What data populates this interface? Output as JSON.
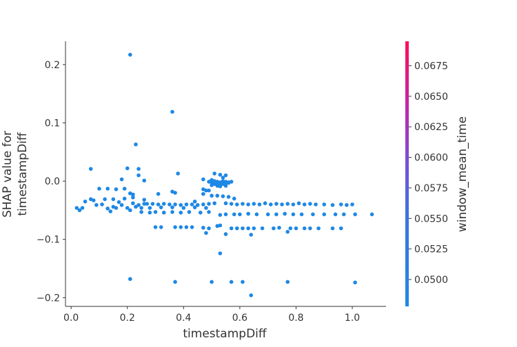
{
  "chart_data": {
    "type": "scatter",
    "xlabel": "timestampDiff",
    "ylabel_lines": [
      "SHAP value for",
      "timestampDiff"
    ],
    "xlim": [
      -0.02,
      1.12
    ],
    "ylim": [
      -0.215,
      0.24
    ],
    "xticks": [
      0.0,
      0.2,
      0.4,
      0.6,
      0.8,
      1.0
    ],
    "xtick_labels": [
      "0.0",
      "0.2",
      "0.4",
      "0.6",
      "0.8",
      "1.0"
    ],
    "yticks": [
      -0.2,
      -0.1,
      0.0,
      0.1,
      0.2
    ],
    "ytick_labels": [
      "−0.2",
      "−0.1",
      "0.0",
      "0.1",
      "0.2"
    ],
    "point_color": "#1e88e5",
    "grid": false,
    "colorbar": {
      "label": "window_mean_time",
      "range": [
        0.0478,
        0.0695
      ],
      "ticks": [
        0.05,
        0.0525,
        0.055,
        0.0575,
        0.06,
        0.0625,
        0.065,
        0.0675
      ],
      "tick_labels": [
        "0.0500",
        "0.0525",
        "0.0550",
        "0.0575",
        "0.0600",
        "0.0625",
        "0.0650",
        "0.0675"
      ],
      "color_low": "#1e88e5",
      "color_high": "#ff0d57"
    },
    "points": [
      [
        0.21,
        0.217
      ],
      [
        0.36,
        0.119
      ],
      [
        0.23,
        0.063
      ],
      [
        0.07,
        0.021
      ],
      [
        0.2,
        0.022
      ],
      [
        0.24,
        0.021
      ],
      [
        0.24,
        0.01
      ],
      [
        0.38,
        0.013
      ],
      [
        0.47,
        0.003
      ],
      [
        0.18,
        0.003
      ],
      [
        0.26,
        0.001
      ],
      [
        0.51,
        0.013
      ],
      [
        0.53,
        0.011
      ],
      [
        0.55,
        0.01
      ],
      [
        0.54,
        0.006
      ],
      [
        0.5,
        0.002
      ],
      [
        0.51,
        0.0
      ],
      [
        0.52,
        -0.001
      ],
      [
        0.53,
        -0.002
      ],
      [
        0.54,
        0.0
      ],
      [
        0.55,
        -0.001
      ],
      [
        0.56,
        -0.003
      ],
      [
        0.5,
        -0.003
      ],
      [
        0.51,
        -0.005
      ],
      [
        0.52,
        -0.004
      ],
      [
        0.53,
        -0.006
      ],
      [
        0.54,
        -0.005
      ],
      [
        0.55,
        -0.004
      ],
      [
        0.56,
        -0.002
      ],
      [
        0.5,
        -0.007
      ],
      [
        0.52,
        -0.008
      ],
      [
        0.53,
        -0.009
      ],
      [
        0.55,
        -0.008
      ],
      [
        0.49,
        -0.001
      ],
      [
        0.57,
        -0.001
      ],
      [
        0.1,
        -0.013
      ],
      [
        0.13,
        -0.013
      ],
      [
        0.16,
        -0.014
      ],
      [
        0.19,
        -0.013
      ],
      [
        0.47,
        -0.014
      ],
      [
        0.48,
        -0.016
      ],
      [
        0.21,
        -0.021
      ],
      [
        0.22,
        -0.023
      ],
      [
        0.31,
        -0.022
      ],
      [
        0.36,
        -0.018
      ],
      [
        0.37,
        -0.02
      ],
      [
        0.47,
        -0.022
      ],
      [
        0.49,
        -0.016
      ],
      [
        0.07,
        -0.031
      ],
      [
        0.08,
        -0.033
      ],
      [
        0.12,
        -0.031
      ],
      [
        0.15,
        -0.031
      ],
      [
        0.19,
        -0.03
      ],
      [
        0.22,
        -0.028
      ],
      [
        0.26,
        -0.032
      ],
      [
        0.5,
        -0.025
      ],
      [
        0.52,
        -0.025
      ],
      [
        0.54,
        -0.026
      ],
      [
        0.56,
        -0.027
      ],
      [
        0.58,
        -0.03
      ],
      [
        0.44,
        -0.035
      ],
      [
        0.02,
        -0.046
      ],
      [
        0.03,
        -0.05
      ],
      [
        0.04,
        -0.046
      ],
      [
        0.05,
        -0.035
      ],
      [
        0.09,
        -0.041
      ],
      [
        0.11,
        -0.04
      ],
      [
        0.13,
        -0.047
      ],
      [
        0.14,
        -0.052
      ],
      [
        0.15,
        -0.044
      ],
      [
        0.16,
        -0.046
      ],
      [
        0.17,
        -0.036
      ],
      [
        0.18,
        -0.041
      ],
      [
        0.2,
        -0.046
      ],
      [
        0.21,
        -0.05
      ],
      [
        0.22,
        -0.038
      ],
      [
        0.23,
        -0.044
      ],
      [
        0.24,
        -0.041
      ],
      [
        0.25,
        -0.046
      ],
      [
        0.26,
        -0.039
      ],
      [
        0.27,
        -0.039
      ],
      [
        0.29,
        -0.039
      ],
      [
        0.31,
        -0.04
      ],
      [
        0.33,
        -0.039
      ],
      [
        0.35,
        -0.04
      ],
      [
        0.37,
        -0.04
      ],
      [
        0.39,
        -0.041
      ],
      [
        0.41,
        -0.04
      ],
      [
        0.43,
        -0.04
      ],
      [
        0.45,
        -0.041
      ],
      [
        0.47,
        -0.04
      ],
      [
        0.49,
        -0.039
      ],
      [
        0.51,
        -0.038
      ],
      [
        0.55,
        -0.038
      ],
      [
        0.57,
        -0.039
      ],
      [
        0.59,
        -0.04
      ],
      [
        0.61,
        -0.039
      ],
      [
        0.63,
        -0.04
      ],
      [
        0.65,
        -0.039
      ],
      [
        0.67,
        -0.04
      ],
      [
        0.69,
        -0.038
      ],
      [
        0.71,
        -0.04
      ],
      [
        0.73,
        -0.039
      ],
      [
        0.75,
        -0.04
      ],
      [
        0.77,
        -0.039
      ],
      [
        0.79,
        -0.04
      ],
      [
        0.81,
        -0.038
      ],
      [
        0.83,
        -0.04
      ],
      [
        0.85,
        -0.039
      ],
      [
        0.87,
        -0.04
      ],
      [
        0.9,
        -0.04
      ],
      [
        0.93,
        -0.041
      ],
      [
        0.96,
        -0.04
      ],
      [
        0.98,
        -0.041
      ],
      [
        1.0,
        -0.04
      ],
      [
        0.28,
        -0.046
      ],
      [
        0.32,
        -0.045
      ],
      [
        0.36,
        -0.045
      ],
      [
        0.4,
        -0.046
      ],
      [
        0.44,
        -0.045
      ],
      [
        0.48,
        -0.046
      ],
      [
        0.25,
        -0.053
      ],
      [
        0.28,
        -0.054
      ],
      [
        0.3,
        -0.053
      ],
      [
        0.33,
        -0.054
      ],
      [
        0.36,
        -0.053
      ],
      [
        0.39,
        -0.054
      ],
      [
        0.42,
        -0.053
      ],
      [
        0.46,
        -0.054
      ],
      [
        0.49,
        -0.053
      ],
      [
        0.53,
        -0.058
      ],
      [
        0.55,
        -0.057
      ],
      [
        0.58,
        -0.057
      ],
      [
        0.6,
        -0.057
      ],
      [
        0.63,
        -0.056
      ],
      [
        0.66,
        -0.057
      ],
      [
        0.7,
        -0.057
      ],
      [
        0.73,
        -0.057
      ],
      [
        0.76,
        -0.056
      ],
      [
        0.79,
        -0.057
      ],
      [
        0.82,
        -0.057
      ],
      [
        0.86,
        -0.057
      ],
      [
        0.9,
        -0.057
      ],
      [
        0.94,
        -0.057
      ],
      [
        0.97,
        -0.057
      ],
      [
        1.01,
        -0.057
      ],
      [
        1.07,
        -0.057
      ],
      [
        0.3,
        -0.079
      ],
      [
        0.32,
        -0.079
      ],
      [
        0.37,
        -0.079
      ],
      [
        0.39,
        -0.079
      ],
      [
        0.41,
        -0.079
      ],
      [
        0.43,
        -0.079
      ],
      [
        0.47,
        -0.08
      ],
      [
        0.49,
        -0.081
      ],
      [
        0.52,
        -0.077
      ],
      [
        0.53,
        -0.076
      ],
      [
        0.57,
        -0.081
      ],
      [
        0.59,
        -0.081
      ],
      [
        0.61,
        -0.081
      ],
      [
        0.63,
        -0.081
      ],
      [
        0.65,
        -0.081
      ],
      [
        0.68,
        -0.081
      ],
      [
        0.72,
        -0.081
      ],
      [
        0.74,
        -0.08
      ],
      [
        0.78,
        -0.081
      ],
      [
        0.8,
        -0.081
      ],
      [
        0.83,
        -0.081
      ],
      [
        0.85,
        -0.081
      ],
      [
        0.88,
        -0.081
      ],
      [
        0.93,
        -0.081
      ],
      [
        0.96,
        -0.081
      ],
      [
        0.48,
        -0.089
      ],
      [
        0.55,
        -0.091
      ],
      [
        0.64,
        -0.092
      ],
      [
        0.77,
        -0.087
      ],
      [
        0.53,
        -0.124
      ],
      [
        0.21,
        -0.168
      ],
      [
        0.37,
        -0.173
      ],
      [
        0.5,
        -0.173
      ],
      [
        0.57,
        -0.173
      ],
      [
        0.61,
        -0.173
      ],
      [
        0.77,
        -0.173
      ],
      [
        1.01,
        -0.174
      ],
      [
        0.64,
        -0.196
      ]
    ]
  }
}
